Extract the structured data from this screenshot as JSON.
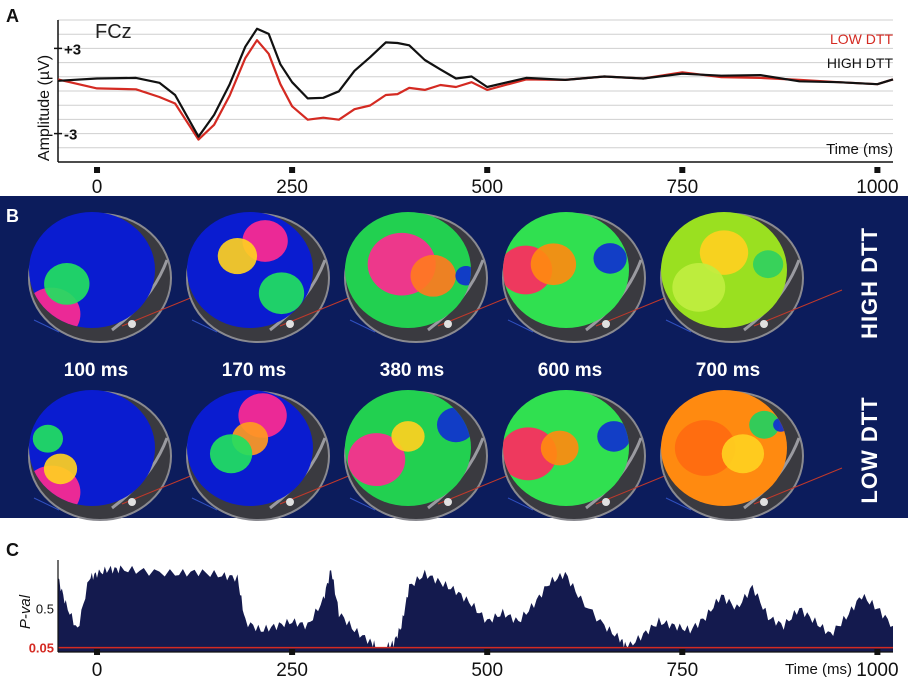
{
  "panels": {
    "a": {
      "letter": "A"
    },
    "b": {
      "letter": "B"
    },
    "c": {
      "letter": "C"
    }
  },
  "colors": {
    "low_dtt": "#d42a22",
    "high_dtt": "#111111",
    "topo_background": "#0c1c5c",
    "pval_fill": "#141a4e",
    "threshold": "#d42a22"
  },
  "chart_data": [
    {
      "type": "line",
      "panel": "A",
      "electrode": "FCz",
      "xlabel": "Time (ms)",
      "ylabel": "Amplitude (µV)",
      "xlim": [
        -50,
        1020
      ],
      "ylim": [
        -5,
        5
      ],
      "xticks": [
        0,
        250,
        500,
        750,
        1000
      ],
      "yticks": [
        {
          "value": 3,
          "label": "+3"
        },
        {
          "value": -3,
          "label": "-3"
        }
      ],
      "grid": true,
      "legend_position": "top-right",
      "x": [
        -50,
        0,
        50,
        80,
        100,
        130,
        150,
        170,
        190,
        205,
        220,
        235,
        250,
        270,
        290,
        310,
        330,
        350,
        370,
        385,
        400,
        420,
        440,
        460,
        480,
        500,
        550,
        600,
        650,
        700,
        750,
        800,
        850,
        900,
        950,
        1000,
        1020
      ],
      "series": [
        {
          "name": "LOW DTT",
          "color_key": "low_dtt",
          "values": [
            0.7,
            0.3,
            0,
            -0.3,
            -1.0,
            -3.3,
            -2.5,
            -0.2,
            2.2,
            3.7,
            2.5,
            0.6,
            -1.2,
            -1.9,
            -2.0,
            -1.9,
            -1.4,
            -0.9,
            -0.4,
            -0.1,
            0.1,
            0.2,
            0.3,
            0.4,
            0.5,
            0.2,
            0.7,
            0.9,
            0.9,
            1.0,
            1.2,
            1.1,
            0.8,
            0.9,
            0.5,
            0.6,
            0.7
          ]
        },
        {
          "name": "HIGH DTT",
          "color_key": "high_dtt",
          "values": [
            0.6,
            1.0,
            0.8,
            0.7,
            -0.4,
            -3.1,
            -1.8,
            0.6,
            3.0,
            4.5,
            3.9,
            2.0,
            0.5,
            -0.4,
            -0.6,
            0.1,
            1.3,
            2.5,
            3.3,
            3.5,
            3.1,
            2.3,
            1.4,
            1.0,
            0.9,
            0.4,
            0.8,
            0.9,
            0.9,
            1.0,
            1.1,
            1.2,
            1.0,
            0.8,
            0.5,
            0.6,
            0.7
          ]
        }
      ]
    },
    {
      "type": "heatmap",
      "panel": "B",
      "time_labels": [
        "100 ms",
        "170 ms",
        "380 ms",
        "600 ms",
        "700 ms"
      ],
      "rows": [
        "HIGH DTT",
        "LOW DTT"
      ],
      "maps": [
        [
          {
            "base": "#0a1cd0",
            "blobs": [
              {
                "c": "#ff2a90",
                "x": 0.18,
                "y": 0.88,
                "r": 0.38
              },
              {
                "c": "#22e060",
                "x": 0.3,
                "y": 0.62,
                "r": 0.3
              }
            ]
          },
          {
            "base": "#0a1cd0",
            "blobs": [
              {
                "c": "#ff2a90",
                "x": 0.62,
                "y": 0.25,
                "r": 0.3
              },
              {
                "c": "#ffd020",
                "x": 0.4,
                "y": 0.38,
                "r": 0.26
              },
              {
                "c": "#22e060",
                "x": 0.75,
                "y": 0.7,
                "r": 0.3
              }
            ]
          },
          {
            "base": "#22d050",
            "blobs": [
              {
                "c": "#ff2a90",
                "x": 0.45,
                "y": 0.45,
                "r": 0.45
              },
              {
                "c": "#ff7a20",
                "x": 0.7,
                "y": 0.55,
                "r": 0.3
              },
              {
                "c": "#1030d0",
                "x": 0.96,
                "y": 0.55,
                "r": 0.14
              }
            ]
          },
          {
            "base": "#30e050",
            "blobs": [
              {
                "c": "#ff2a60",
                "x": 0.18,
                "y": 0.5,
                "r": 0.35
              },
              {
                "c": "#ff8a10",
                "x": 0.4,
                "y": 0.45,
                "r": 0.3
              },
              {
                "c": "#1030d0",
                "x": 0.85,
                "y": 0.4,
                "r": 0.22
              }
            ]
          },
          {
            "base": "#9ae020",
            "blobs": [
              {
                "c": "#ffd020",
                "x": 0.5,
                "y": 0.35,
                "r": 0.32
              },
              {
                "c": "#c0ee40",
                "x": 0.3,
                "y": 0.65,
                "r": 0.35
              },
              {
                "c": "#30d060",
                "x": 0.85,
                "y": 0.45,
                "r": 0.2
              }
            ]
          }
        ],
        [
          {
            "base": "#0a1cd0",
            "blobs": [
              {
                "c": "#ff2a90",
                "x": 0.18,
                "y": 0.88,
                "r": 0.38
              },
              {
                "c": "#ffd020",
                "x": 0.25,
                "y": 0.68,
                "r": 0.22
              },
              {
                "c": "#22e060",
                "x": 0.15,
                "y": 0.42,
                "r": 0.2
              }
            ]
          },
          {
            "base": "#0a1cd0",
            "blobs": [
              {
                "c": "#ff2a90",
                "x": 0.6,
                "y": 0.22,
                "r": 0.32
              },
              {
                "c": "#ff9a20",
                "x": 0.5,
                "y": 0.42,
                "r": 0.24
              },
              {
                "c": "#22e060",
                "x": 0.35,
                "y": 0.55,
                "r": 0.28
              }
            ]
          },
          {
            "base": "#22d050",
            "blobs": [
              {
                "c": "#ff2a90",
                "x": 0.25,
                "y": 0.6,
                "r": 0.38
              },
              {
                "c": "#ffd020",
                "x": 0.5,
                "y": 0.4,
                "r": 0.22
              },
              {
                "c": "#1030d0",
                "x": 0.88,
                "y": 0.3,
                "r": 0.25
              }
            ]
          },
          {
            "base": "#30e050",
            "blobs": [
              {
                "c": "#ff2a60",
                "x": 0.2,
                "y": 0.55,
                "r": 0.38
              },
              {
                "c": "#ff8a10",
                "x": 0.45,
                "y": 0.5,
                "r": 0.25
              },
              {
                "c": "#1030d0",
                "x": 0.88,
                "y": 0.4,
                "r": 0.22
              }
            ]
          },
          {
            "base": "#ff8a10",
            "blobs": [
              {
                "c": "#ff6a10",
                "x": 0.35,
                "y": 0.5,
                "r": 0.4
              },
              {
                "c": "#ffd020",
                "x": 0.65,
                "y": 0.55,
                "r": 0.28
              },
              {
                "c": "#22d060",
                "x": 0.82,
                "y": 0.3,
                "r": 0.2
              },
              {
                "c": "#1030d0",
                "x": 0.95,
                "y": 0.3,
                "r": 0.1
              }
            ]
          }
        ]
      ]
    },
    {
      "type": "area",
      "panel": "C",
      "ylabel": "P-val",
      "xlabel": "Time (ms)",
      "xlim": [
        -50,
        1020
      ],
      "ylim": [
        0,
        1
      ],
      "xticks": [
        0,
        250,
        500,
        750,
        1000
      ],
      "yticks": [
        {
          "value": 0.5,
          "label": "0.5"
        },
        {
          "value": 0.05,
          "label": "0.05"
        }
      ],
      "threshold": 0.05,
      "x": [
        -50,
        -40,
        -25,
        -10,
        0,
        15,
        30,
        60,
        100,
        130,
        160,
        180,
        190,
        210,
        230,
        250,
        270,
        290,
        300,
        310,
        330,
        350,
        360,
        370,
        380,
        390,
        400,
        420,
        440,
        460,
        480,
        500,
        520,
        540,
        560,
        580,
        600,
        620,
        650,
        670,
        680,
        700,
        720,
        740,
        760,
        780,
        800,
        820,
        840,
        860,
        880,
        900,
        920,
        940,
        960,
        980,
        1000,
        1020
      ],
      "values": [
        0.85,
        0.55,
        0.25,
        0.85,
        0.9,
        0.95,
        0.95,
        0.93,
        0.9,
        0.92,
        0.88,
        0.85,
        0.35,
        0.25,
        0.3,
        0.35,
        0.3,
        0.6,
        0.95,
        0.45,
        0.25,
        0.12,
        0.05,
        0.05,
        0.1,
        0.3,
        0.75,
        0.9,
        0.8,
        0.7,
        0.55,
        0.35,
        0.45,
        0.35,
        0.55,
        0.8,
        0.9,
        0.6,
        0.3,
        0.15,
        0.05,
        0.2,
        0.35,
        0.3,
        0.25,
        0.4,
        0.65,
        0.5,
        0.75,
        0.4,
        0.3,
        0.5,
        0.35,
        0.2,
        0.4,
        0.65,
        0.5,
        0.3
      ]
    }
  ]
}
